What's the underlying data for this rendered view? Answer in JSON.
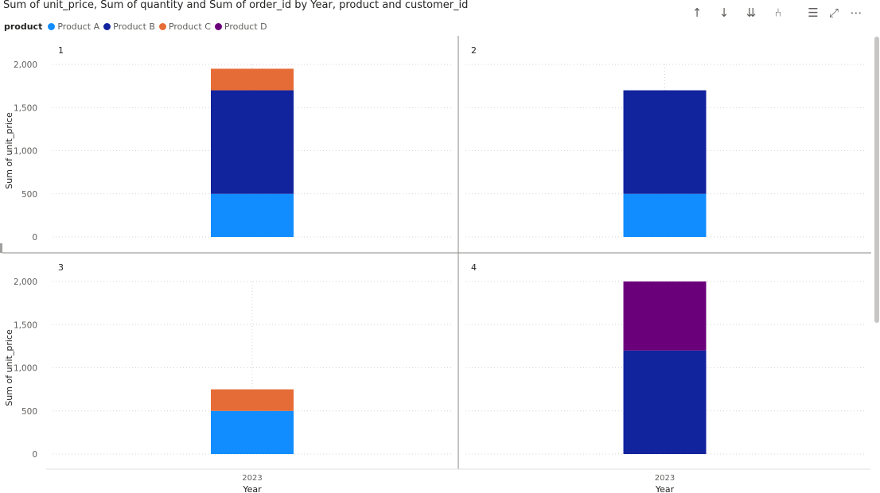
{
  "header": {
    "title": "Sum of unit_price, Sum of quantity and Sum of order_id by Year, product and customer_id"
  },
  "toolbar": {
    "icons": [
      "arrow-up-icon",
      "arrow-down-icon",
      "double-arrow-down-icon",
      "expand-hierarchy-icon",
      "filter-icon",
      "focus-mode-icon",
      "more-options-icon"
    ],
    "glyphs": [
      "↑",
      "↓",
      "⇊",
      "⑃",
      "☰",
      "⤢",
      "⋯"
    ]
  },
  "legend": {
    "title": "product",
    "items": [
      {
        "label": "Product A",
        "color": "#118DFF"
      },
      {
        "label": "Product B",
        "color": "#12239E"
      },
      {
        "label": "Product C",
        "color": "#E66C37"
      },
      {
        "label": "Product D",
        "color": "#6B007B"
      }
    ]
  },
  "chart_data": {
    "type": "bar",
    "stacked": true,
    "ylabel": "Sum of unit_price",
    "xlabel": "Year",
    "ylim": [
      0,
      2000
    ],
    "yticks": [
      0,
      500,
      1000,
      1500,
      2000
    ],
    "ytick_labels": [
      "0",
      "500",
      "1,000",
      "1,500",
      "2,000"
    ],
    "categories": [
      "2023"
    ],
    "panels": [
      {
        "label": "1",
        "series": [
          {
            "name": "Product A",
            "values": [
              500
            ]
          },
          {
            "name": "Product B",
            "values": [
              1200
            ]
          },
          {
            "name": "Product C",
            "values": [
              250
            ]
          }
        ]
      },
      {
        "label": "2",
        "series": [
          {
            "name": "Product A",
            "values": [
              500
            ]
          },
          {
            "name": "Product B",
            "values": [
              1200
            ]
          }
        ]
      },
      {
        "label": "3",
        "series": [
          {
            "name": "Product A",
            "values": [
              500
            ]
          },
          {
            "name": "Product C",
            "values": [
              250
            ]
          }
        ]
      },
      {
        "label": "4",
        "series": [
          {
            "name": "Product B",
            "values": [
              1200
            ]
          },
          {
            "name": "Product D",
            "values": [
              800
            ]
          }
        ]
      }
    ]
  }
}
